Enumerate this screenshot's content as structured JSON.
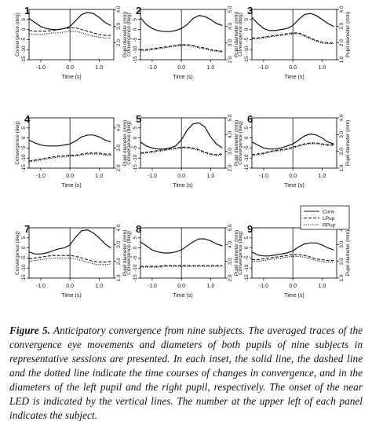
{
  "figure": {
    "caption_label": "Figure 5.",
    "caption_text": " Anticipatory convergence from nine subjects. The averaged traces of the convergence eye movements and diameters of both pupils of nine subjects in representative sessions are presented. In each inset, the solid line, the dashed line and the dotted line indicate the time courses of changes in convergence, and in the diameters of the left pupil and the right pupil, respectively. The onset of the near LED is indicated by the vertical lines. The number at the upper left of each panel indicates the subject."
  },
  "legend": {
    "entries": [
      "Conv",
      "LPup",
      "RPup"
    ]
  },
  "chart_data": [
    {
      "type": "line",
      "panel": "1",
      "xlabel": "Time (s)",
      "ylabel": "Convergence (deg)",
      "y2label": "Pupil diameter (mm)",
      "xticks": [
        "-1.0",
        "0.0",
        "1.0"
      ],
      "yticks": [
        "5",
        "0",
        "-5",
        "-10",
        "-15"
      ],
      "y2ticks": [
        "2.0",
        "3.0",
        "4.0"
      ],
      "xlim": [
        -1.4,
        1.5
      ],
      "ylim": [
        -15,
        10
      ],
      "y2lim": [
        1.0,
        4.0
      ],
      "x": [
        -1.4,
        -1.2,
        -1.0,
        -0.8,
        -0.6,
        -0.4,
        -0.2,
        0.0,
        0.2,
        0.4,
        0.6,
        0.8,
        1.0,
        1.2,
        1.4
      ],
      "series": [
        {
          "role": "conv",
          "values": [
            5.5,
            3.5,
            1.5,
            0.5,
            0.0,
            0.0,
            0.5,
            1.5,
            4.5,
            7.5,
            8.5,
            8.0,
            6.0,
            3.5,
            2.0
          ]
        },
        {
          "role": "lpup",
          "values": [
            2.75,
            2.7,
            2.7,
            2.7,
            2.75,
            2.8,
            2.85,
            2.9,
            2.9,
            2.8,
            2.7,
            2.6,
            2.5,
            2.45,
            2.45
          ]
        },
        {
          "role": "rpup",
          "values": [
            2.55,
            2.5,
            2.5,
            2.55,
            2.6,
            2.6,
            2.65,
            2.7,
            2.7,
            2.6,
            2.5,
            2.4,
            2.35,
            2.3,
            2.3
          ]
        }
      ]
    },
    {
      "type": "line",
      "panel": "2",
      "xlabel": "Time (s)",
      "ylabel": "Convergence (deg)",
      "y2label": "Pupil diameter (mm)",
      "xticks": [
        "-1.0",
        "0.0",
        "1.0"
      ],
      "yticks": [
        "5",
        "0",
        "-5",
        "-10",
        "-15"
      ],
      "y2ticks": [
        "2.0",
        "3.0",
        "4.0",
        "5.0"
      ],
      "xlim": [
        -1.4,
        1.5
      ],
      "ylim": [
        -15,
        10
      ],
      "y2lim": [
        2.0,
        5.0
      ],
      "x": [
        -1.4,
        -1.2,
        -1.0,
        -0.8,
        -0.6,
        -0.4,
        -0.2,
        0.0,
        0.2,
        0.4,
        0.6,
        0.8,
        1.0,
        1.2,
        1.4
      ],
      "series": [
        {
          "role": "conv",
          "values": [
            6.0,
            2.5,
            0.5,
            -0.5,
            -1.0,
            -1.0,
            -0.5,
            0.5,
            2.5,
            5.5,
            7.0,
            6.5,
            5.0,
            3.0,
            2.0
          ]
        },
        {
          "role": "lpup",
          "values": [
            2.6,
            2.6,
            2.65,
            2.7,
            2.75,
            2.8,
            2.85,
            2.9,
            2.9,
            2.85,
            2.75,
            2.7,
            2.6,
            2.55,
            2.5
          ]
        },
        {
          "role": "rpup",
          "values": [
            2.55,
            2.55,
            2.6,
            2.65,
            2.7,
            2.75,
            2.8,
            2.85,
            2.85,
            2.8,
            2.7,
            2.65,
            2.55,
            2.5,
            2.45
          ]
        }
      ]
    },
    {
      "type": "line",
      "panel": "3",
      "xlabel": "Time (s)",
      "ylabel": "Convergence (deg)",
      "y2label": "Pupil diameter (mm)",
      "xticks": [
        "-1.0",
        "0.0",
        "1.0"
      ],
      "yticks": [
        "5",
        "0",
        "-5",
        "-10",
        "-15"
      ],
      "y2ticks": [
        "1.0",
        "2.0",
        "3.0",
        "4.0"
      ],
      "xlim": [
        -1.4,
        1.5
      ],
      "ylim": [
        -15,
        10
      ],
      "y2lim": [
        1.0,
        4.0
      ],
      "x": [
        -1.4,
        -1.2,
        -1.0,
        -0.8,
        -0.6,
        -0.4,
        -0.2,
        0.0,
        0.2,
        0.4,
        0.6,
        0.8,
        1.0,
        1.2,
        1.4
      ],
      "series": [
        {
          "role": "conv",
          "values": [
            6.0,
            3.0,
            0.5,
            -0.5,
            -0.5,
            0.0,
            0.5,
            2.0,
            5.0,
            7.5,
            8.0,
            7.0,
            5.0,
            3.0,
            1.5
          ]
        },
        {
          "role": "lpup",
          "values": [
            2.3,
            2.3,
            2.35,
            2.4,
            2.45,
            2.5,
            2.55,
            2.6,
            2.6,
            2.45,
            2.3,
            2.15,
            2.05,
            2.0,
            2.0
          ]
        },
        {
          "role": "rpup",
          "values": [
            2.25,
            2.25,
            2.3,
            2.35,
            2.4,
            2.45,
            2.5,
            2.55,
            2.55,
            2.4,
            2.25,
            2.1,
            2.0,
            1.95,
            1.95
          ]
        }
      ]
    },
    {
      "type": "line",
      "panel": "4",
      "xlabel": "Time (s)",
      "ylabel": "Convergence (deg)",
      "y2label": "Pupil diameter (mm)",
      "xticks": [
        "-1.0",
        "0.0",
        "1.0"
      ],
      "yticks": [
        "5",
        "0",
        "-5",
        "-10",
        "-15"
      ],
      "y2ticks": [
        "2.0",
        "3.0",
        "4.0"
      ],
      "xlim": [
        -1.4,
        1.5
      ],
      "ylim": [
        -15,
        10
      ],
      "y2lim": [
        2.0,
        4.5
      ],
      "x": [
        -1.4,
        -1.2,
        -1.0,
        -0.8,
        -0.6,
        -0.4,
        -0.2,
        0.0,
        0.2,
        0.4,
        0.6,
        0.8,
        1.0,
        1.2,
        1.4
      ],
      "series": [
        {
          "role": "conv",
          "values": [
            -1.0,
            -2.5,
            -3.5,
            -4.0,
            -4.0,
            -4.0,
            -3.5,
            -3.0,
            -1.5,
            0.5,
            1.5,
            1.5,
            0.5,
            -1.0,
            -2.0
          ]
        },
        {
          "role": "lpup",
          "values": [
            2.35,
            2.4,
            2.45,
            2.5,
            2.55,
            2.6,
            2.6,
            2.65,
            2.65,
            2.7,
            2.75,
            2.75,
            2.75,
            2.7,
            2.7
          ]
        },
        {
          "role": "rpup",
          "values": [
            2.3,
            2.35,
            2.4,
            2.45,
            2.5,
            2.55,
            2.55,
            2.6,
            2.6,
            2.65,
            2.7,
            2.7,
            2.7,
            2.65,
            2.65
          ]
        }
      ]
    },
    {
      "type": "line",
      "panel": "5",
      "xlabel": "Time (s)",
      "ylabel": "Convergence (deg)",
      "y2label": "Pupil diameter (mm)",
      "xticks": [
        "-1.0",
        "0.0",
        "1.0"
      ],
      "yticks": [
        "5",
        "0",
        "-5",
        "-10",
        "-15"
      ],
      "y2ticks": [
        "2.0",
        "3.0",
        "4.0",
        "5.0"
      ],
      "xlim": [
        -1.4,
        1.5
      ],
      "ylim": [
        -15,
        10
      ],
      "y2lim": [
        2.0,
        5.0
      ],
      "x": [
        -1.4,
        -1.2,
        -1.0,
        -0.8,
        -0.6,
        -0.4,
        -0.2,
        0.0,
        0.2,
        0.4,
        0.6,
        0.8,
        1.0,
        1.2,
        1.4
      ],
      "series": [
        {
          "role": "conv",
          "values": [
            -2.0,
            -4.0,
            -5.0,
            -5.5,
            -5.5,
            -5.0,
            -4.0,
            -1.0,
            4.0,
            7.0,
            7.5,
            5.5,
            0.5,
            -3.0,
            -5.0
          ]
        },
        {
          "role": "lpup",
          "values": [
            2.9,
            2.95,
            3.0,
            3.05,
            3.1,
            3.15,
            3.2,
            3.25,
            3.25,
            3.2,
            3.1,
            2.95,
            2.85,
            2.8,
            2.85
          ]
        },
        {
          "role": "rpup",
          "values": [
            2.85,
            2.9,
            2.95,
            3.0,
            3.05,
            3.1,
            3.15,
            3.2,
            3.2,
            3.15,
            3.05,
            2.9,
            2.8,
            2.75,
            2.8
          ]
        }
      ]
    },
    {
      "type": "line",
      "panel": "6",
      "xlabel": "Time (s)",
      "ylabel": "Convergence (deg)",
      "y2label": "Pupil diameter (mm)",
      "xticks": [
        "-1.0",
        "0.0",
        "1.0"
      ],
      "yticks": [
        "5",
        "0",
        "-5",
        "-10",
        "-15"
      ],
      "y2ticks": [
        "1.0",
        "2.0",
        "3.0",
        "4.0"
      ],
      "xlim": [
        -1.4,
        1.5
      ],
      "ylim": [
        -15,
        10
      ],
      "y2lim": [
        1.0,
        4.0
      ],
      "x": [
        -1.4,
        -1.2,
        -1.0,
        -0.8,
        -0.6,
        -0.4,
        -0.2,
        0.0,
        0.2,
        0.4,
        0.6,
        0.8,
        1.0,
        1.2,
        1.4
      ],
      "series": [
        {
          "role": "conv",
          "values": [
            -2.0,
            -3.5,
            -5.0,
            -5.5,
            -5.5,
            -5.0,
            -4.0,
            -3.0,
            -1.0,
            1.0,
            2.0,
            1.5,
            0.0,
            -2.0,
            -3.0
          ]
        },
        {
          "role": "lpup",
          "values": [
            1.8,
            1.85,
            1.9,
            2.0,
            2.05,
            2.1,
            2.15,
            2.25,
            2.35,
            2.45,
            2.5,
            2.5,
            2.45,
            2.4,
            2.4
          ]
        },
        {
          "role": "rpup",
          "values": [
            1.75,
            1.8,
            1.85,
            1.95,
            2.0,
            2.05,
            2.1,
            2.2,
            2.3,
            2.4,
            2.45,
            2.45,
            2.4,
            2.35,
            2.35
          ]
        }
      ]
    },
    {
      "type": "line",
      "panel": "7",
      "xlabel": "Time (s)",
      "ylabel": "Convergence (deg)",
      "y2label": "Pupil diameter (mm)",
      "xticks": [
        "-1.0",
        "0.0",
        "1.0"
      ],
      "yticks": [
        "5",
        "0",
        "-5",
        "-10",
        "-15"
      ],
      "y2ticks": [
        "1.0",
        "2.0",
        "3.0",
        "4.0"
      ],
      "xlim": [
        -1.4,
        1.5
      ],
      "ylim": [
        -15,
        10
      ],
      "y2lim": [
        1.0,
        4.0
      ],
      "x": [
        -1.4,
        -1.2,
        -1.0,
        -0.8,
        -0.6,
        -0.4,
        -0.2,
        0.0,
        0.2,
        0.4,
        0.6,
        0.8,
        1.0,
        1.2,
        1.4
      ],
      "series": [
        {
          "role": "conv",
          "values": [
            -2.0,
            -3.0,
            -3.0,
            -2.5,
            -1.5,
            -0.5,
            0.0,
            1.5,
            5.5,
            8.5,
            9.0,
            7.5,
            5.0,
            2.0,
            0.0
          ]
        },
        {
          "role": "lpup",
          "values": [
            2.15,
            2.2,
            2.25,
            2.3,
            2.35,
            2.35,
            2.35,
            2.35,
            2.3,
            2.2,
            2.1,
            2.0,
            1.95,
            1.95,
            2.0
          ]
        },
        {
          "role": "rpup",
          "values": [
            2.0,
            2.05,
            2.1,
            2.15,
            2.2,
            2.2,
            2.2,
            2.2,
            2.15,
            2.05,
            1.95,
            1.85,
            1.8,
            1.8,
            1.85
          ]
        }
      ]
    },
    {
      "type": "line",
      "panel": "8",
      "xlabel": "Time (s)",
      "ylabel": "Convergence (deg)",
      "y2label": "Pupil diameter (mm)",
      "xticks": [
        "-1.0",
        "0.0",
        "1.0"
      ],
      "yticks": [
        "5",
        "0",
        "-5",
        "-10",
        "-15"
      ],
      "y2ticks": [
        "2.0",
        "3.0",
        "4.0",
        "5.0"
      ],
      "xlim": [
        -1.4,
        1.5
      ],
      "ylim": [
        -15,
        10
      ],
      "y2lim": [
        2.0,
        5.0
      ],
      "x": [
        -1.4,
        -1.2,
        -1.0,
        -0.8,
        -0.6,
        -0.4,
        -0.2,
        0.0,
        0.2,
        0.4,
        0.6,
        0.8,
        1.0,
        1.2,
        1.4
      ],
      "series": [
        {
          "role": "conv",
          "values": [
            3.0,
            1.0,
            -1.0,
            -2.0,
            -2.5,
            -2.5,
            -2.0,
            -1.0,
            1.0,
            3.0,
            4.5,
            4.5,
            3.5,
            2.0,
            1.0
          ]
        },
        {
          "role": "lpup",
          "values": [
            2.7,
            2.7,
            2.7,
            2.7,
            2.75,
            2.75,
            2.75,
            2.75,
            2.75,
            2.75,
            2.75,
            2.75,
            2.75,
            2.75,
            2.75
          ]
        },
        {
          "role": "rpup",
          "values": [
            2.65,
            2.65,
            2.65,
            2.65,
            2.7,
            2.7,
            2.7,
            2.7,
            2.7,
            2.7,
            2.7,
            2.7,
            2.7,
            2.7,
            2.7
          ]
        }
      ]
    },
    {
      "type": "line",
      "panel": "9",
      "xlabel": "Time (s)",
      "ylabel": "Convergence (deg)",
      "y2label": "Pupil diameter (mm)",
      "xticks": [
        "-1.0",
        "0.0",
        "1.0"
      ],
      "yticks": [
        "5",
        "0",
        "-5",
        "-10",
        "-15"
      ],
      "y2ticks": [
        "1.0",
        "2.0",
        "3.0",
        "4.0"
      ],
      "xlim": [
        -1.4,
        1.5
      ],
      "ylim": [
        -15,
        10
      ],
      "y2lim": [
        1.0,
        4.0
      ],
      "x": [
        -1.4,
        -1.2,
        -1.0,
        -0.8,
        -0.6,
        -0.4,
        -0.2,
        0.0,
        0.2,
        0.4,
        0.6,
        0.8,
        1.0,
        1.2,
        1.4
      ],
      "series": [
        {
          "role": "conv",
          "values": [
            -2.0,
            -3.5,
            -4.0,
            -4.0,
            -3.5,
            -3.0,
            -2.5,
            -1.5,
            0.5,
            2.0,
            2.5,
            2.5,
            1.5,
            0.0,
            -1.0
          ]
        },
        {
          "role": "lpup",
          "values": [
            2.1,
            2.1,
            2.15,
            2.2,
            2.25,
            2.3,
            2.35,
            2.4,
            2.4,
            2.35,
            2.25,
            2.15,
            2.1,
            2.05,
            2.05
          ]
        },
        {
          "role": "rpup",
          "values": [
            2.0,
            2.0,
            2.05,
            2.1,
            2.15,
            2.2,
            2.25,
            2.3,
            2.3,
            2.25,
            2.15,
            2.05,
            2.0,
            1.95,
            1.95
          ]
        }
      ]
    }
  ]
}
